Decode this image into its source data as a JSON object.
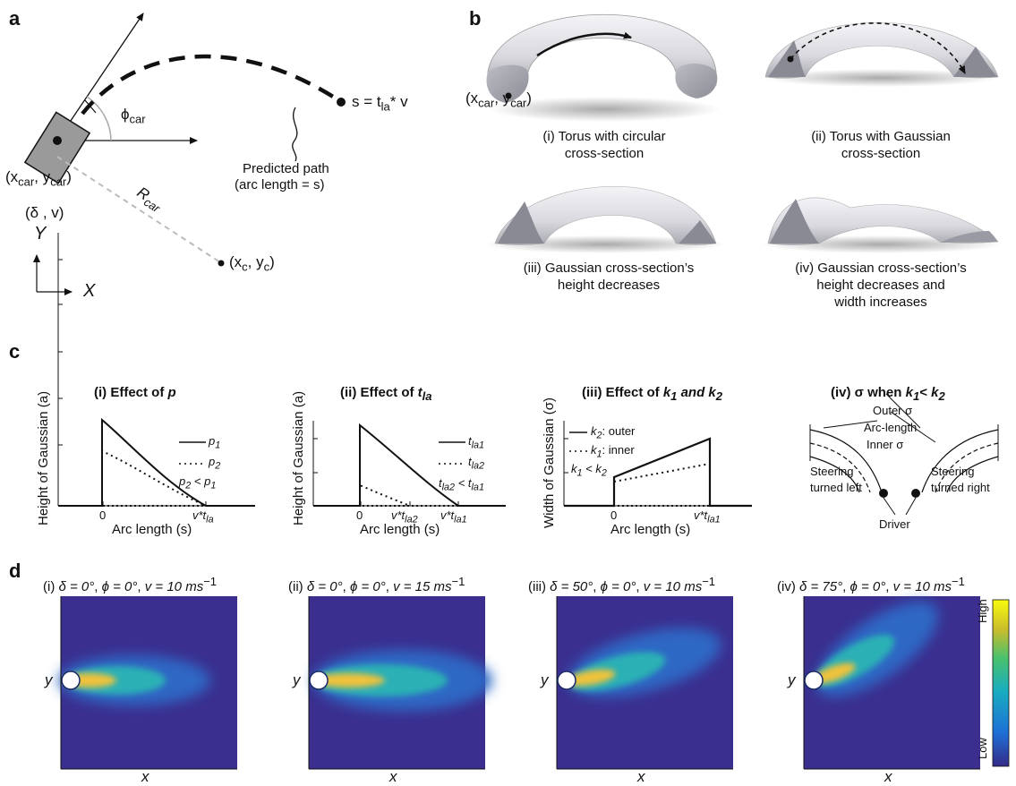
{
  "panels": {
    "a": "a",
    "b": "b",
    "c": "c",
    "d": "d"
  },
  "panel_a": {
    "phi": "ϕ",
    "phi_sub": "car",
    "s_eq": "s = t",
    "s_eq_sub": "la",
    "s_eq_tail": "* v",
    "predicted_1": "Predicted path",
    "predicted_2": "(arc length = s)",
    "car_pos": "(x",
    "car_pos_sub1": "car",
    "car_pos_mid": ", y",
    "car_pos_sub2": "car",
    "car_pos_end": ")",
    "delta_v": "(δ , v)",
    "r_car": "R",
    "r_car_sub": "car",
    "center_pos": "(x",
    "center_sub1": "c",
    "center_mid": ", y",
    "center_sub2": "c",
    "center_end": ")",
    "axis_y": "Y",
    "axis_x": "X"
  },
  "panel_b": {
    "coord": "(x",
    "coord_sub1": "car",
    "coord_mid": ", y",
    "coord_sub2": "car",
    "coord_end": ")",
    "captions": [
      [
        "(i) Torus with circular",
        "cross-section"
      ],
      [
        "(ii) Torus with Gaussian",
        "cross-section"
      ],
      [
        "(iii) Gaussian cross-section’s",
        "height decreases"
      ],
      [
        "(iv) Gaussian cross-section’s",
        "height decreases and",
        "width increases"
      ]
    ]
  },
  "panel_c": {
    "i": {
      "title": "(i) Effect of ",
      "title_var": "p",
      "ylabel": "Height of Gaussian (a)",
      "xlabel": "Arc length (s)",
      "legend1": "p",
      "legend1_sub": "1",
      "legend2": "p",
      "legend2_sub": "2",
      "cond": "p",
      "cond_sub1": "2",
      "cond_mid": " < p",
      "cond_sub2": "1",
      "tick0": "0",
      "tick1": "v*t",
      "tick1_sub": "la"
    },
    "ii": {
      "title": "(ii) Effect of ",
      "title_var": "t",
      "title_sub": "la",
      "ylabel": "Height of Gaussian (a)",
      "xlabel": "Arc length (s)",
      "legend1": "t",
      "legend1_sub": "la1",
      "legend2": "t",
      "legend2_sub": "la2",
      "cond": "t",
      "cond_sub1": "la2",
      "cond_mid": " < t",
      "cond_sub2": "la1",
      "tick0": "0",
      "tick1": "v*t",
      "tick1_sub": "la2",
      "tick2": "v*t",
      "tick2_sub": "la1"
    },
    "iii": {
      "title": "(iii) Effect of ",
      "title_var1": "k",
      "title_sub1": "1",
      "title_and": " and ",
      "title_var2": "k",
      "title_sub2": "2",
      "ylabel": "Width of Gaussian (σ)",
      "xlabel": "Arc length (s)",
      "legend1": "k",
      "legend1_sub": "2",
      "legend1_tail": ": outer",
      "legend2": "k",
      "legend2_sub": "1",
      "legend2_tail": ": inner",
      "cond": "k",
      "cond_sub1": "1",
      "cond_mid": " < k",
      "cond_sub2": "2",
      "tick0": "0",
      "tick1": "v*t",
      "tick1_sub": "la1"
    },
    "iv": {
      "title": "(iv) σ when ",
      "title_var1": "k",
      "title_sub1": "1",
      "title_mid": "< ",
      "title_var2": "k",
      "title_sub2": "2",
      "outer": "Outer σ",
      "arc": "Arc-length",
      "inner": "Inner σ",
      "left1": "Steering",
      "left2": "turned left",
      "right1": "Steering",
      "right2": "turned right",
      "driver": "Driver"
    }
  },
  "panel_d": {
    "titles": [
      {
        "pre": "(i) ",
        "delta": "δ = 0°",
        "phi": "ϕ = 0°",
        "v": "v = 10 ms",
        "exp": "−1"
      },
      {
        "pre": "(ii) ",
        "delta": "δ = 0°",
        "phi": "ϕ = 0°",
        "v": "v = 15 ms",
        "exp": "−1"
      },
      {
        "pre": "(iii) ",
        "delta": "δ = 50°",
        "phi": "ϕ = 0°",
        "v": "v = 10 ms",
        "exp": "−1"
      },
      {
        "pre": "(iv) ",
        "delta": "δ = 75°",
        "phi": "ϕ = 0°",
        "v": "v = 10 ms",
        "exp": "−1"
      }
    ],
    "xlabel": "x",
    "ylabel": "y",
    "colorbar_high": "High",
    "colorbar_low": "Low",
    "colors": {
      "background": "#3a2f8f",
      "hot": "#f6c233",
      "mid": "#34b5a8",
      "low": "#2c6fb5"
    }
  }
}
